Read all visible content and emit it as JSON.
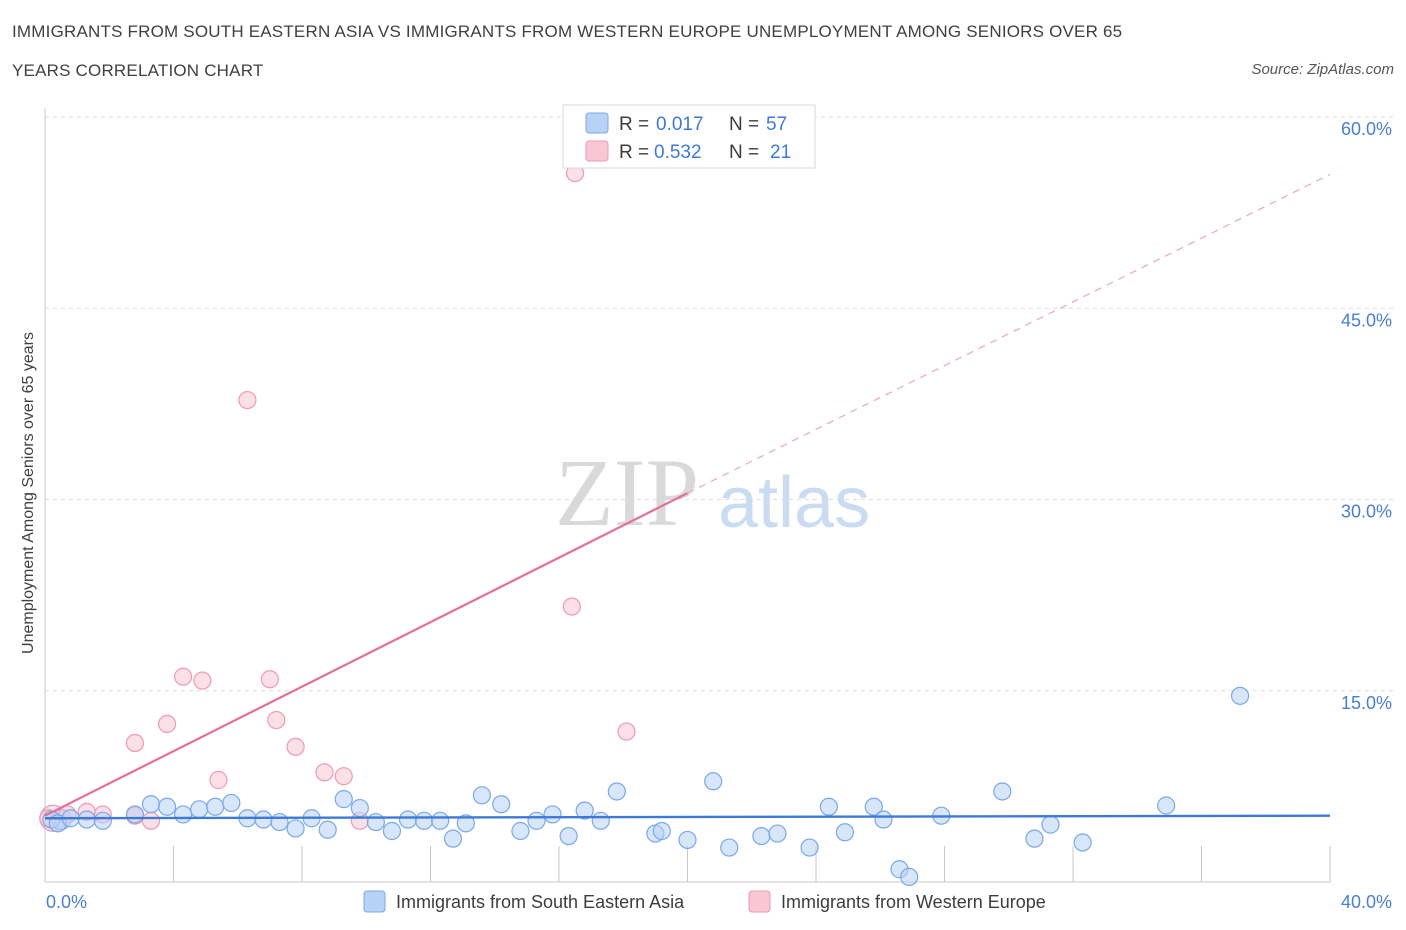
{
  "header": {
    "title_line1": "IMMIGRANTS FROM SOUTH EASTERN ASIA VS IMMIGRANTS FROM WESTERN EUROPE UNEMPLOYMENT AMONG SENIORS OVER 65",
    "title_line2": "YEARS CORRELATION CHART",
    "source": "Source: ZipAtlas.com"
  },
  "watermark": {
    "zip": "ZIP",
    "atlas": "atlas"
  },
  "legend": {
    "r_label": "R =",
    "n_label": "N =",
    "series1_r": "0.017",
    "series1_n": "57",
    "series2_r": "0.532",
    "series2_n": "21"
  },
  "colors": {
    "series1_fill": "#b8d2f5",
    "series1_stroke": "#7aa8e6",
    "series1_line": "#3d7ad8",
    "series2_fill": "#f9c6d4",
    "series2_stroke": "#ee9ab3",
    "series2_line": "#e46f98",
    "grid": "#dcdcdc",
    "tick_text": "#4a7fd0"
  },
  "chart_data": {
    "type": "scatter",
    "title": "IMMIGRANTS FROM SOUTH EASTERN ASIA VS IMMIGRANTS FROM WESTERN EUROPE UNEMPLOYMENT AMONG SENIORS OVER 65 YEARS CORRELATION CHART",
    "xlabel": "",
    "ylabel": "Unemployment Among Seniors over 65 years",
    "xlim": [
      0,
      40
    ],
    "ylim": [
      0,
      60
    ],
    "x_tick_labels": [
      {
        "value": 0,
        "label": "0.0%"
      },
      {
        "value": 40,
        "label": "40.0%"
      }
    ],
    "x_minor_ticks": [
      4,
      8,
      12,
      16,
      20,
      24,
      28,
      32,
      36,
      40
    ],
    "y_ticks": [
      {
        "value": 15,
        "label": "15.0%"
      },
      {
        "value": 30,
        "label": "30.0%"
      },
      {
        "value": 45,
        "label": "45.0%"
      },
      {
        "value": 60,
        "label": "60.0%"
      }
    ],
    "grid": true,
    "legend_position": "top-center",
    "series": [
      {
        "name": "Immigrants from South Eastern Asia",
        "R": 0.017,
        "N": 57,
        "trend": {
          "x0": 0,
          "y0": 5.0,
          "x1": 40,
          "y1": 5.2,
          "dashed_extension": false
        },
        "points": [
          [
            0.2,
            4.9
          ],
          [
            0.4,
            4.6
          ],
          [
            0.8,
            5.0
          ],
          [
            1.3,
            4.9
          ],
          [
            1.8,
            4.8
          ],
          [
            2.8,
            5.3
          ],
          [
            3.3,
            6.1
          ],
          [
            3.8,
            5.9
          ],
          [
            4.3,
            5.3
          ],
          [
            4.8,
            5.7
          ],
          [
            5.3,
            5.9
          ],
          [
            5.8,
            6.2
          ],
          [
            6.3,
            5.0
          ],
          [
            6.8,
            4.9
          ],
          [
            7.3,
            4.7
          ],
          [
            7.8,
            4.2
          ],
          [
            8.3,
            5.0
          ],
          [
            8.8,
            4.1
          ],
          [
            9.3,
            6.5
          ],
          [
            9.8,
            5.8
          ],
          [
            10.3,
            4.7
          ],
          [
            10.8,
            4.0
          ],
          [
            11.3,
            4.9
          ],
          [
            11.8,
            4.8
          ],
          [
            12.3,
            4.8
          ],
          [
            12.7,
            3.4
          ],
          [
            13.1,
            4.6
          ],
          [
            13.6,
            6.8
          ],
          [
            14.2,
            6.1
          ],
          [
            14.8,
            4.0
          ],
          [
            15.3,
            4.8
          ],
          [
            15.8,
            5.3
          ],
          [
            16.3,
            3.6
          ],
          [
            16.8,
            5.6
          ],
          [
            17.3,
            4.8
          ],
          [
            17.8,
            7.1
          ],
          [
            19.0,
            3.8
          ],
          [
            19.2,
            4.0
          ],
          [
            20.0,
            3.3
          ],
          [
            20.8,
            7.9
          ],
          [
            21.3,
            2.7
          ],
          [
            22.3,
            3.6
          ],
          [
            22.8,
            3.8
          ],
          [
            23.8,
            2.7
          ],
          [
            24.4,
            5.9
          ],
          [
            24.9,
            3.9
          ],
          [
            25.8,
            5.9
          ],
          [
            26.1,
            4.9
          ],
          [
            26.6,
            1.0
          ],
          [
            26.9,
            0.4
          ],
          [
            27.9,
            5.2
          ],
          [
            29.8,
            7.1
          ],
          [
            30.8,
            3.4
          ],
          [
            31.3,
            4.5
          ],
          [
            32.3,
            3.1
          ],
          [
            34.9,
            6.0
          ],
          [
            37.2,
            14.6
          ]
        ]
      },
      {
        "name": "Immigrants from Western Europe",
        "R": 0.532,
        "N": 21,
        "trend": {
          "x0": 0,
          "y0": 5.2,
          "x1": 20,
          "y1": 30.5,
          "dashed_to_x": 40,
          "dashed_to_y": 55.5
        },
        "points": [
          [
            0.1,
            5.0
          ],
          [
            0.7,
            5.3
          ],
          [
            1.3,
            5.5
          ],
          [
            1.8,
            5.3
          ],
          [
            2.8,
            5.2
          ],
          [
            3.3,
            4.8
          ],
          [
            2.8,
            10.9
          ],
          [
            3.8,
            12.4
          ],
          [
            4.3,
            16.1
          ],
          [
            4.9,
            15.8
          ],
          [
            5.4,
            8.0
          ],
          [
            6.3,
            37.8
          ],
          [
            7.0,
            15.9
          ],
          [
            7.2,
            12.7
          ],
          [
            7.8,
            10.6
          ],
          [
            8.7,
            8.6
          ],
          [
            9.3,
            8.3
          ],
          [
            9.8,
            4.8
          ],
          [
            16.5,
            55.6
          ],
          [
            16.4,
            21.6
          ],
          [
            18.1,
            11.8
          ]
        ]
      }
    ]
  }
}
